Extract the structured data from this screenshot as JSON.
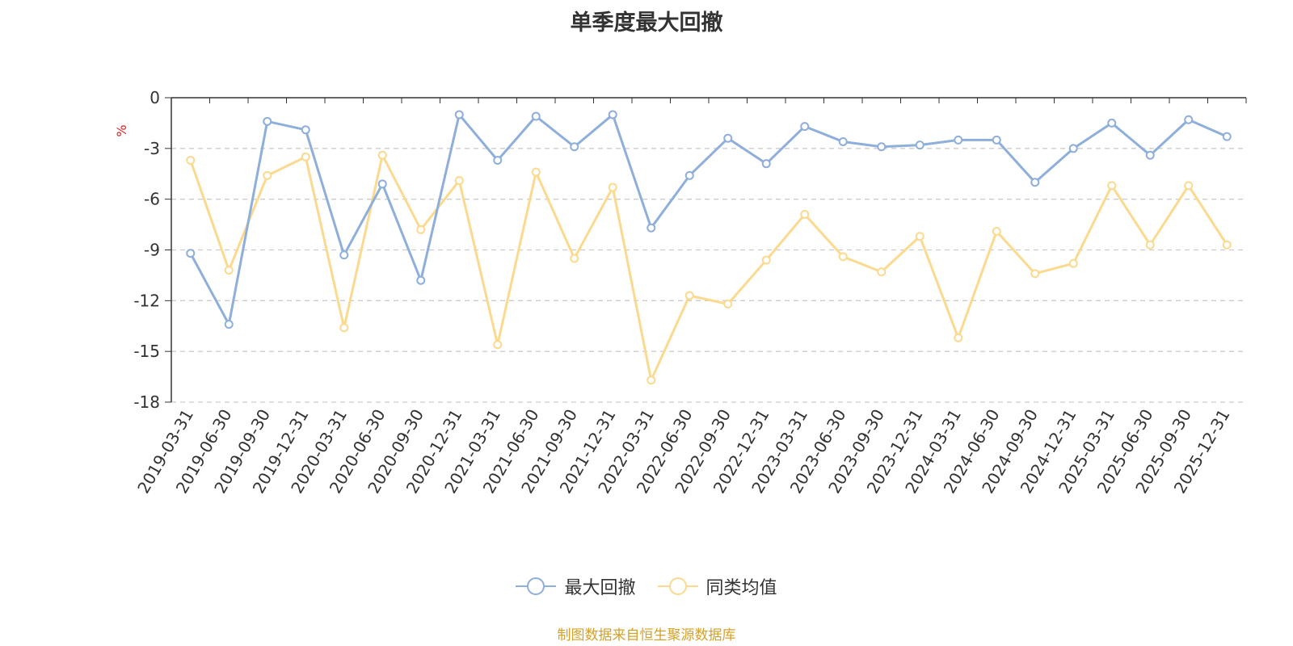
{
  "title": "单季度最大回撤",
  "source_note": "制图数据来自恒生聚源数据库",
  "colors": {
    "series1": "#8eaedc",
    "series2": "#fbd98e",
    "ylabel": "#e02020",
    "grid": "#cccccc",
    "axis": "#333333",
    "source": "#d4a12a"
  },
  "chart_data": {
    "type": "line",
    "title": "单季度最大回撤",
    "xlabel": "",
    "ylabel": "%",
    "ylim": [
      -18,
      0
    ],
    "yticks": [
      0,
      -3,
      -6,
      -9,
      -12,
      -15,
      -18
    ],
    "grid": "horizontal-dashed",
    "legend_position": "bottom-center",
    "categories": [
      "2019-03-31",
      "2019-06-30",
      "2019-09-30",
      "2019-12-31",
      "2020-03-31",
      "2020-06-30",
      "2020-09-30",
      "2020-12-31",
      "2021-03-31",
      "2021-06-30",
      "2021-09-30",
      "2021-12-31",
      "2022-03-31",
      "2022-06-30",
      "2022-09-30",
      "2022-12-31",
      "2023-03-31",
      "2023-06-30",
      "2023-09-30",
      "2023-12-31",
      "2024-03-31",
      "2024-06-30",
      "2024-09-30",
      "2024-12-31",
      "2025-03-31",
      "2025-06-30",
      "2025-09-30",
      "2025-12-31"
    ],
    "series": [
      {
        "name": "最大回撤",
        "color": "#8eaedc",
        "values": [
          -9.2,
          -13.4,
          -1.4,
          -1.9,
          -9.3,
          -5.1,
          -10.8,
          -1.0,
          -3.7,
          -1.1,
          -2.9,
          -1.0,
          -7.7,
          -4.6,
          -2.4,
          -3.9,
          -1.7,
          -2.6,
          -2.9,
          -2.8,
          -2.5,
          -2.5,
          -5.0,
          -3.0,
          -1.5,
          -3.4,
          -1.3,
          -2.3
        ]
      },
      {
        "name": "同类均值",
        "color": "#fbd98e",
        "values": [
          -3.7,
          -10.2,
          -4.6,
          -3.5,
          -13.6,
          -3.4,
          -7.8,
          -4.9,
          -14.6,
          -4.4,
          -9.5,
          -5.3,
          -16.7,
          -11.7,
          -12.2,
          -9.6,
          -6.9,
          -9.4,
          -10.3,
          -8.2,
          -14.2,
          -7.9,
          -10.4,
          -9.8,
          -5.2,
          -8.7,
          -5.2,
          -8.7
        ]
      }
    ]
  }
}
